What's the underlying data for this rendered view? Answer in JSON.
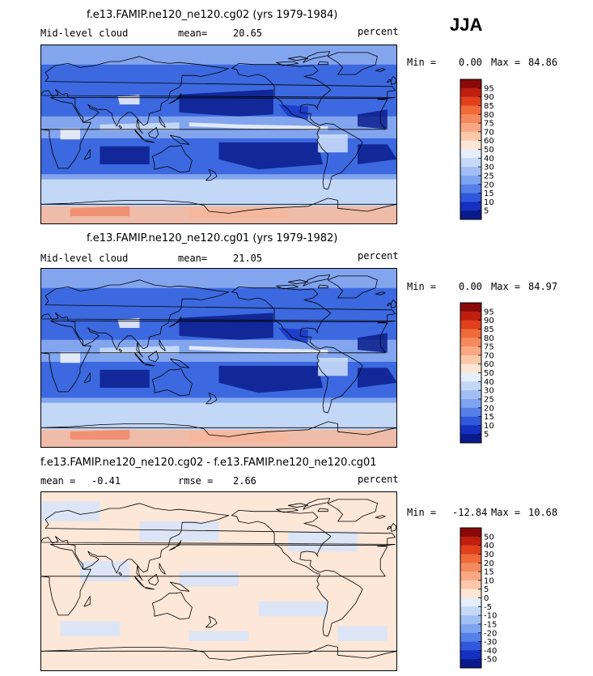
{
  "season": "JJA",
  "panels": [
    {
      "title": "f.e13.FAMIP.ne120_ne120.cg02 (yrs 1979-1984)",
      "left_label": "Mid-level cloud",
      "mean_label": "mean=",
      "mean_value": "20.65",
      "units": "percent",
      "min_label": "Min =",
      "min_value": "0.00",
      "max_label": "Max =",
      "max_value": "84.86"
    },
    {
      "title": "f.e13.FAMIP.ne120_ne120.cg01 (yrs 1979-1982)",
      "left_label": "Mid-level cloud",
      "mean_label": "mean=",
      "mean_value": "21.05",
      "units": "percent",
      "min_label": "Min =",
      "min_value": "0.00",
      "max_label": "Max =",
      "max_value": "84.97"
    },
    {
      "title": "f.e13.FAMIP.ne120_ne120.cg02 - f.e13.FAMIP.ne120_ne120.cg01",
      "left_label": "mean =",
      "left_value": "-0.41",
      "rmse_label": "rmse =",
      "rmse_value": "2.66",
      "units": "percent",
      "min_label": "Min =",
      "min_value": "-12.84",
      "max_label": "Max =",
      "max_value": "10.68"
    }
  ],
  "colorbars": {
    "field": {
      "labels": [
        "95",
        "90",
        "85",
        "80",
        "75",
        "70",
        "60",
        "50",
        "40",
        "30",
        "25",
        "20",
        "15",
        "10",
        "5"
      ],
      "colors": [
        "#8a0a0a",
        "#c01e0e",
        "#e0401c",
        "#f06a3a",
        "#f48a5e",
        "#f8a882",
        "#fcc8aa",
        "#fde6d4",
        "#e4eefc",
        "#c6d8f8",
        "#a2bff4",
        "#7ea4f0",
        "#5680e8",
        "#2f58da",
        "#1430c0",
        "#0a1a8a"
      ]
    },
    "diff": {
      "labels": [
        "50",
        "40",
        "30",
        "20",
        "15",
        "10",
        "5",
        "0",
        "-5",
        "-10",
        "-15",
        "-20",
        "-30",
        "-40",
        "-50"
      ],
      "colors": [
        "#8a0a0a",
        "#c01e0e",
        "#e0401c",
        "#f06a3a",
        "#f48a5e",
        "#f8a882",
        "#fcc8aa",
        "#fde6d4",
        "#e4eefc",
        "#c6d8f8",
        "#a2bff4",
        "#7ea4f0",
        "#5680e8",
        "#2f58da",
        "#1430c0",
        "#0a1a8a"
      ]
    }
  },
  "map_colors": {
    "deep": "#0b1d8c",
    "dark": "#1637c4",
    "mid": "#3c69e0",
    "light": "#8fb0f0",
    "pale": "#cfdff8",
    "white": "#f2f5fc",
    "warm": "#f6b79b",
    "hot": "#ee8a68",
    "diff_base": "#fde7d8",
    "diff_blue": "#d8e4f8",
    "coast": "#000000"
  }
}
